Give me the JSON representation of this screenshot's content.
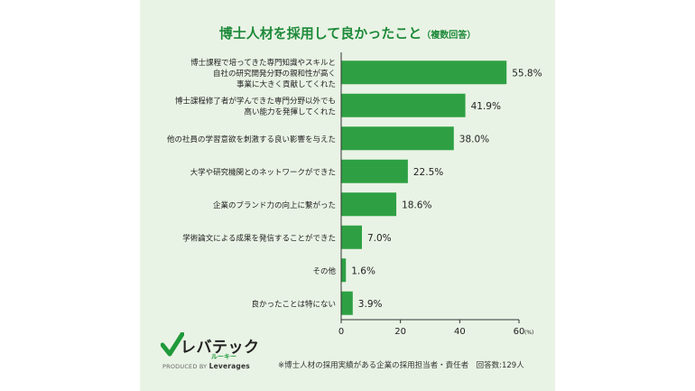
{
  "chart_data": {
    "type": "bar",
    "orientation": "horizontal",
    "title": "博士人材を採用して良かったこと",
    "title_note": "（複数回答）",
    "categories": [
      [
        "博士課程で培ってきた専門知識やスキルと",
        "自社の研究開発分野の親和性が高く",
        "事業に大きく貢献してくれた"
      ],
      [
        "博士課程修了者が学んできた専門分野以外でも",
        "高い能力を発揮してくれた"
      ],
      [
        "他の社員の学習意欲を刺激する良い影響を与えた"
      ],
      [
        "大学や研究機関とのネットワークができた"
      ],
      [
        "企業のブランド力の向上に繋がった"
      ],
      [
        "学術論文による成果を発信することができた"
      ],
      [
        "その他"
      ],
      [
        "良かったことは特にない"
      ]
    ],
    "values": [
      55.8,
      41.9,
      38.0,
      22.5,
      18.6,
      7.0,
      1.6,
      3.9
    ],
    "value_labels": [
      "55.8%",
      "41.9%",
      "38.0%",
      "22.5%",
      "18.6%",
      "7.0%",
      "1.6%",
      "3.9%"
    ],
    "x_ticks": [
      "0",
      "20",
      "40",
      "60"
    ],
    "x_unit": "(%)",
    "xlim": [
      0,
      60
    ],
    "colors": {
      "bar": "#2ea043",
      "title": "#1e8a3a",
      "axis": "#333333",
      "panel": "#e9f3e5"
    }
  },
  "logo": {
    "brand": "レバテック",
    "sub": "ルーキー",
    "produced_by": "PRODUCED BY",
    "company": "Leverages"
  },
  "footnote": "※博士人材の採用実績がある企業の採用担当者・責任者　回答数:129人"
}
